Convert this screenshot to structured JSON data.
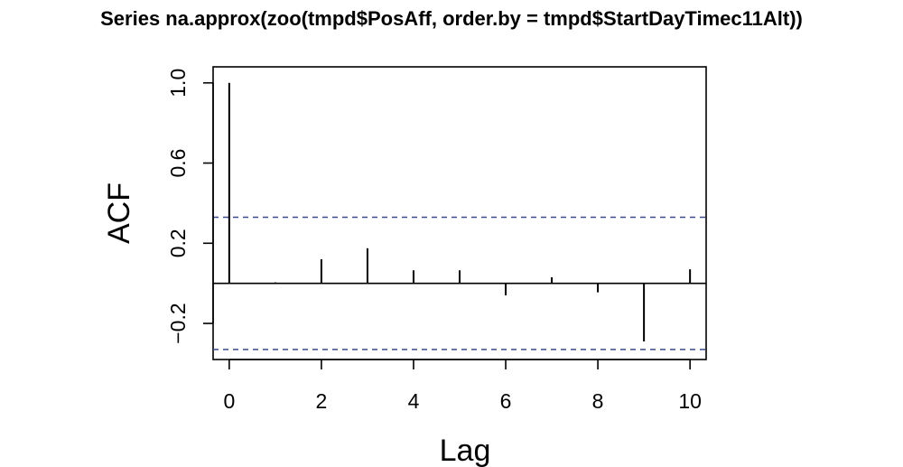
{
  "chart_data": {
    "type": "bar",
    "title": "Series na.approx(zoo(tmpd$PosAff, order.by = tmpd$StartDayTimec11Alt))",
    "xlabel": "Lag",
    "ylabel": "ACF",
    "xlim": [
      -0.35,
      10.35
    ],
    "ylim": [
      -0.38,
      1.08
    ],
    "x_ticks": [
      0,
      2,
      4,
      6,
      8,
      10
    ],
    "x_tick_labels": [
      "0",
      "2",
      "4",
      "6",
      "8",
      "10"
    ],
    "y_ticks": [
      -0.2,
      0.2,
      0.6,
      1.0
    ],
    "y_tick_labels": [
      "−0.2",
      "0.2",
      "0.6",
      "1.0"
    ],
    "lags": [
      0,
      1,
      2,
      3,
      4,
      5,
      6,
      7,
      8,
      9,
      10
    ],
    "values": [
      1.0,
      0.005,
      0.12,
      0.175,
      0.065,
      0.065,
      -0.06,
      0.03,
      -0.045,
      -0.29,
      0.07
    ],
    "confidence_bounds": [
      0.33,
      -0.33
    ],
    "confidence_line_color": "#3b4a8c",
    "bar_color": "#000000",
    "grid": false,
    "legend": "none"
  }
}
